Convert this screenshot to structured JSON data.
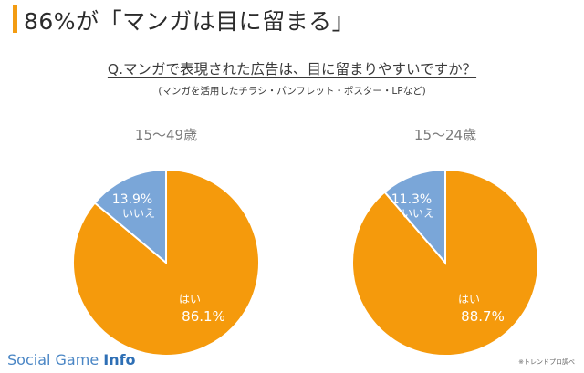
{
  "page_title": "86%が「マンガは目に留まる」",
  "question": "Q.マンガで表現された広告は、目に留まりやすいですか？",
  "note": "(マンガを活用したチラシ・パンフレット・ポスター・LPなど)",
  "footer": {
    "brand_prefix": "Social Game ",
    "brand_bold": "Info",
    "source": "※トレンドプロ調べ"
  },
  "colors": {
    "accent": "#f39c12",
    "yes": "#f59a0c",
    "no": "#7aa6d8"
  },
  "chart_data": [
    {
      "type": "pie",
      "title": "15〜49歳",
      "slices": [
        {
          "label": "はい",
          "value": 86.1,
          "value_label": "86.1%"
        },
        {
          "label": "いいえ",
          "value": 13.9,
          "value_label": "13.9%"
        }
      ]
    },
    {
      "type": "pie",
      "title": "15〜24歳",
      "slices": [
        {
          "label": "はい",
          "value": 88.7,
          "value_label": "88.7%"
        },
        {
          "label": "いいえ",
          "value": 11.3,
          "value_label": "11.3%"
        }
      ]
    }
  ]
}
